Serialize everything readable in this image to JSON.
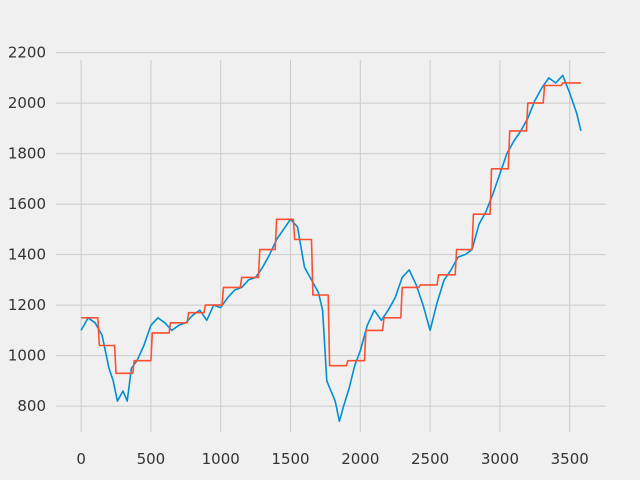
{
  "chart_data": {
    "type": "line",
    "title": "",
    "xlabel": "",
    "ylabel": "",
    "xlim": [
      -180,
      3760
    ],
    "ylim": [
      650,
      2250
    ],
    "x_ticks": [
      0,
      500,
      1000,
      1500,
      2000,
      2500,
      3000,
      3500
    ],
    "y_ticks": [
      800,
      1000,
      1200,
      1400,
      1600,
      1800,
      2000,
      2200
    ],
    "grid": true,
    "legend": "none",
    "series": [
      {
        "color": "#008fd5",
        "x": [
          0,
          50,
          100,
          150,
          200,
          230,
          260,
          300,
          330,
          360,
          400,
          450,
          500,
          550,
          600,
          650,
          700,
          750,
          800,
          850,
          900,
          950,
          1000,
          1050,
          1100,
          1150,
          1200,
          1250,
          1300,
          1350,
          1400,
          1450,
          1500,
          1550,
          1600,
          1650,
          1700,
          1730,
          1760,
          1790,
          1820,
          1850,
          1880,
          1920,
          1960,
          2000,
          2050,
          2100,
          2150,
          2200,
          2250,
          2300,
          2350,
          2400,
          2450,
          2500,
          2550,
          2600,
          2650,
          2700,
          2750,
          2800,
          2850,
          2900,
          2950,
          3000,
          3050,
          3100,
          3150,
          3200,
          3250,
          3300,
          3350,
          3400,
          3450,
          3500,
          3550,
          3580
        ],
        "y": [
          1100,
          1150,
          1130,
          1080,
          950,
          900,
          820,
          860,
          820,
          950,
          980,
          1040,
          1120,
          1150,
          1130,
          1100,
          1120,
          1130,
          1160,
          1180,
          1140,
          1200,
          1190,
          1230,
          1260,
          1270,
          1300,
          1310,
          1350,
          1400,
          1460,
          1500,
          1540,
          1510,
          1350,
          1300,
          1250,
          1180,
          900,
          860,
          820,
          740,
          800,
          870,
          960,
          1020,
          1120,
          1180,
          1140,
          1180,
          1230,
          1310,
          1340,
          1280,
          1200,
          1100,
          1210,
          1300,
          1340,
          1390,
          1400,
          1420,
          1520,
          1570,
          1640,
          1720,
          1800,
          1850,
          1890,
          1940,
          2010,
          2060,
          2100,
          2080,
          2110,
          2040,
          1960,
          1890
        ]
      },
      {
        "color": "#fc4f30",
        "x": [
          0,
          120,
          130,
          240,
          250,
          370,
          380,
          500,
          510,
          630,
          640,
          760,
          770,
          880,
          890,
          1010,
          1020,
          1140,
          1150,
          1270,
          1280,
          1390,
          1400,
          1520,
          1530,
          1650,
          1660,
          1770,
          1780,
          1900,
          1910,
          2030,
          2040,
          2160,
          2170,
          2290,
          2300,
          2420,
          2430,
          2550,
          2560,
          2680,
          2690,
          2800,
          2810,
          2930,
          2940,
          3060,
          3070,
          3190,
          3200,
          3310,
          3320,
          3440,
          3450,
          3580
        ],
        "y": [
          1150,
          1150,
          1040,
          1040,
          930,
          930,
          980,
          980,
          1090,
          1090,
          1130,
          1130,
          1170,
          1170,
          1200,
          1200,
          1270,
          1270,
          1310,
          1310,
          1420,
          1420,
          1540,
          1540,
          1460,
          1460,
          1240,
          1240,
          960,
          960,
          980,
          980,
          1100,
          1100,
          1150,
          1150,
          1270,
          1270,
          1280,
          1280,
          1320,
          1320,
          1420,
          1420,
          1560,
          1560,
          1740,
          1740,
          1890,
          1890,
          2000,
          2000,
          2070,
          2070,
          2080,
          2080
        ]
      }
    ]
  }
}
